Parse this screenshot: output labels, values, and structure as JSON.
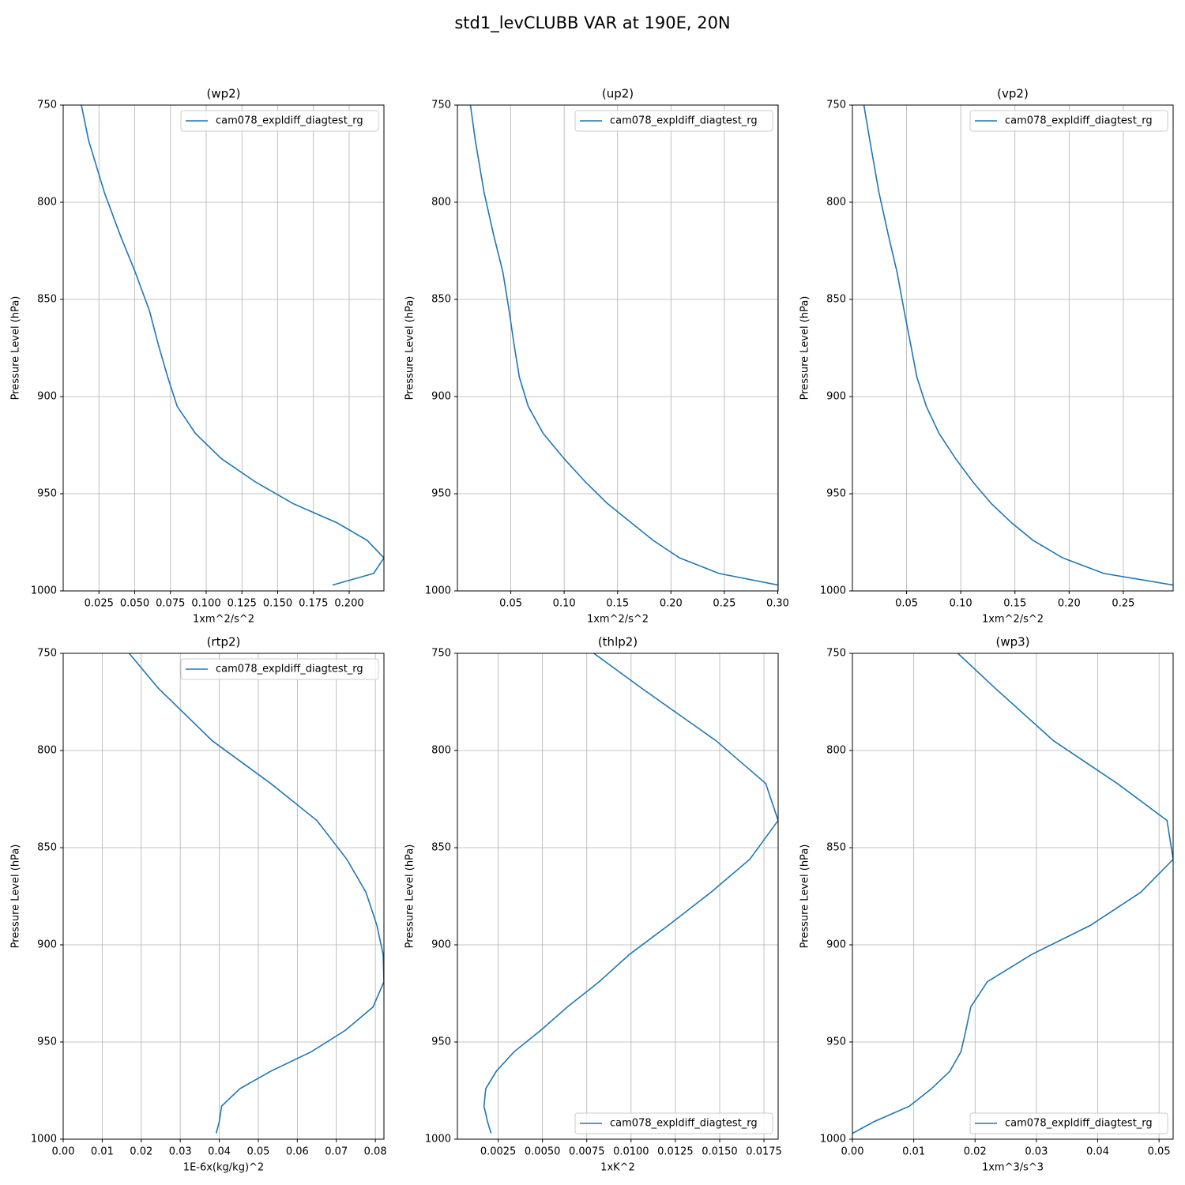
{
  "title": "std1_levCLUBB VAR at 190E, 20N",
  "chart_data": [
    {
      "type": "line",
      "title": "(wp2)",
      "xlabel": "1xm^2/s^2",
      "ylabel": "Pressure Level (hPa)",
      "legend": "upper right",
      "grid": true,
      "y": [
        750,
        768,
        795,
        817,
        836,
        856,
        873,
        890,
        905,
        919,
        932,
        944,
        955,
        965,
        974,
        983,
        991,
        997
      ],
      "series": [
        {
          "name": "cam078_expldiff_diagtest_rg",
          "color": "#1f77b4",
          "values": [
            0.0127,
            0.0177,
            0.0288,
            0.0399,
            0.0504,
            0.0604,
            0.0664,
            0.0731,
            0.0797,
            0.0925,
            0.1107,
            0.1346,
            0.1606,
            0.1916,
            0.2126,
            0.2243,
            0.2171,
            0.1883
          ]
        }
      ],
      "xlim": [
        0,
        0.2243
      ],
      "xticks": [
        0.025,
        {
          "value": 0.05,
          "label": "0.050"
        },
        0.075,
        {
          "value": 0.1,
          "label": "0.100"
        },
        0.125,
        {
          "value": 0.15,
          "label": "0.150"
        },
        0.175,
        {
          "value": 0.2,
          "label": "0.200"
        }
      ],
      "ylim": [
        1000,
        750
      ],
      "yticks": [
        750,
        800,
        850,
        900,
        950,
        1000
      ]
    },
    {
      "type": "line",
      "title": "(up2)",
      "xlabel": "1xm^2/s^2",
      "ylabel": "Pressure Level (hPa)",
      "legend": "upper right",
      "grid": true,
      "y": [
        750,
        768,
        795,
        817,
        836,
        856,
        873,
        890,
        905,
        919,
        932,
        944,
        955,
        965,
        974,
        983,
        991,
        997
      ],
      "series": [
        {
          "name": "cam078_expldiff_diagtest_rg",
          "color": "#1f77b4",
          "values": [
            0.0122,
            0.0167,
            0.025,
            0.034,
            0.0426,
            0.0485,
            0.053,
            0.058,
            0.0663,
            0.0804,
            0.1,
            0.12,
            0.1404,
            0.163,
            0.1833,
            0.208,
            0.245,
            0.3004
          ]
        }
      ],
      "xlim": [
        0,
        0.3004
      ],
      "xticks": [
        0.05,
        {
          "value": 0.1,
          "label": "0.10"
        },
        0.15,
        {
          "value": 0.2,
          "label": "0.20"
        },
        0.25,
        {
          "value": 0.3,
          "label": "0.30"
        }
      ],
      "ylim": [
        1000,
        750
      ],
      "yticks": [
        750,
        800,
        850,
        900,
        950,
        1000
      ]
    },
    {
      "type": "line",
      "title": "(vp2)",
      "xlabel": "1xm^2/s^2",
      "ylabel": "Pressure Level (hPa)",
      "legend": "upper right",
      "grid": true,
      "y": [
        750,
        768,
        795,
        817,
        836,
        856,
        873,
        890,
        905,
        919,
        932,
        944,
        955,
        965,
        974,
        983,
        991,
        997
      ],
      "series": [
        {
          "name": "cam078_expldiff_diagtest_rg",
          "color": "#1f77b4",
          "values": [
            0.0106,
            0.016,
            0.0245,
            0.0332,
            0.0412,
            0.0478,
            0.0537,
            0.0595,
            0.0682,
            0.08,
            0.0953,
            0.1113,
            0.1281,
            0.147,
            0.1668,
            0.194,
            0.232,
            0.296
          ]
        }
      ],
      "xlim": [
        0,
        0.296
      ],
      "xticks": [
        0.05,
        {
          "value": 0.1,
          "label": "0.10"
        },
        0.15,
        {
          "value": 0.2,
          "label": "0.20"
        },
        0.25
      ],
      "ylim": [
        1000,
        750
      ],
      "yticks": [
        750,
        800,
        850,
        900,
        950,
        1000
      ]
    },
    {
      "type": "line",
      "title": "(rtp2)",
      "xlabel": "1E-6x(kg/kg)^2",
      "ylabel": "Pressure Level (hPa)",
      "legend": "upper right",
      "grid": true,
      "y": [
        750,
        768,
        795,
        817,
        836,
        856,
        873,
        890,
        905,
        919,
        932,
        944,
        955,
        965,
        974,
        983,
        991,
        997
      ],
      "series": [
        {
          "name": "cam078_expldiff_diagtest_rg",
          "color": "#1f77b4",
          "values": [
            0.0169,
            0.0244,
            0.0382,
            0.0532,
            0.065,
            0.0727,
            0.0776,
            0.0804,
            0.082,
            0.0822,
            0.0794,
            0.0723,
            0.0636,
            0.0532,
            0.0453,
            0.0406,
            0.04,
            0.0392
          ]
        }
      ],
      "xlim": [
        0,
        0.0822
      ],
      "xticks": [
        {
          "value": 0,
          "label": "0.00"
        },
        0.01,
        0.02,
        0.03,
        0.04,
        0.05,
        0.06,
        0.07,
        0.08
      ],
      "ylim": [
        1000,
        750
      ],
      "yticks": [
        750,
        800,
        850,
        900,
        950,
        1000
      ]
    },
    {
      "type": "line",
      "title": "(thlp2)",
      "xlabel": "1xK^2",
      "ylabel": "Pressure Level (hPa)",
      "legend": "lower right",
      "grid": true,
      "y": [
        750,
        768,
        795,
        817,
        836,
        856,
        873,
        890,
        905,
        919,
        932,
        944,
        955,
        965,
        974,
        983,
        991,
        997
      ],
      "series": [
        {
          "name": "cam078_expldiff_diagtest_rg",
          "color": "#1f77b4",
          "values": [
            0.0079,
            0.0106,
            0.0148,
            0.0176,
            0.0183,
            0.0167,
            0.0145,
            0.0121,
            0.0099,
            0.0082,
            0.0064,
            0.0049,
            0.0034,
            0.0024,
            0.0018,
            0.0017,
            0.0019,
            0.0021
          ]
        }
      ],
      "xlim": [
        0.0002,
        0.0183
      ],
      "xticks": [
        0.0025,
        {
          "value": 0.005,
          "label": "0.0050"
        },
        0.0075,
        {
          "value": 0.01,
          "label": "0.0100"
        },
        0.0125,
        {
          "value": 0.015,
          "label": "0.0150"
        },
        0.0175
      ],
      "ylim": [
        1000,
        750
      ],
      "yticks": [
        750,
        800,
        850,
        900,
        950,
        1000
      ]
    },
    {
      "type": "line",
      "title": "(wp3)",
      "xlabel": "1xm^3/s^3",
      "ylabel": "Pressure Level (hPa)",
      "legend": "lower right",
      "grid": true,
      "y": [
        750,
        768,
        795,
        817,
        836,
        856,
        873,
        890,
        905,
        919,
        932,
        944,
        955,
        965,
        974,
        983,
        991,
        997
      ],
      "series": [
        {
          "name": "cam078_expldiff_diagtest_rg",
          "color": "#1f77b4",
          "values": [
            0.0172,
            0.0233,
            0.0328,
            0.0432,
            0.0513,
            0.0523,
            0.047,
            0.0388,
            0.0292,
            0.022,
            0.0193,
            0.0185,
            0.0177,
            0.0159,
            0.0129,
            0.0093,
            0.0035,
            0
          ]
        }
      ],
      "xlim": [
        0,
        0.0523
      ],
      "xticks": [
        {
          "value": 0,
          "label": "0.00"
        },
        0.01,
        0.02,
        0.03,
        0.04,
        0.05
      ],
      "ylim": [
        1000,
        750
      ],
      "yticks": [
        750,
        800,
        850,
        900,
        950,
        1000
      ]
    }
  ]
}
